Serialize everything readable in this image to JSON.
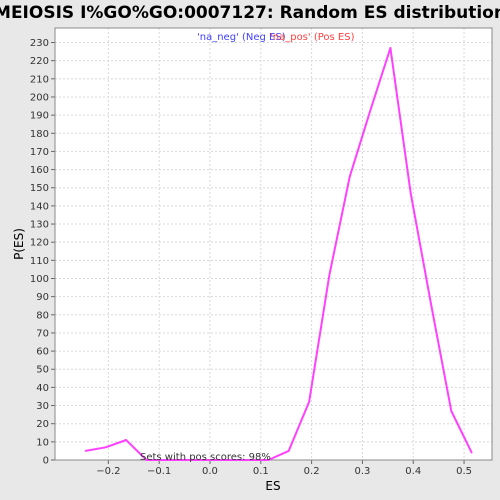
{
  "chart_data": {
    "type": "line",
    "title": "MEIOSIS I%GO%GO:0007127: Random ES distribution",
    "xlabel": "ES",
    "ylabel": "P(ES)",
    "xlim": [
      -0.305,
      0.555
    ],
    "ylim": [
      0,
      238
    ],
    "x_ticks": [
      -0.2,
      -0.1,
      0.0,
      0.1,
      0.2,
      0.3,
      0.4,
      0.5
    ],
    "x_tick_labels": [
      "−0.2",
      "−0.1",
      "0.0",
      "0.1",
      "0.2",
      "0.3",
      "0.4",
      "0.5"
    ],
    "y_ticks": [
      0,
      10,
      20,
      30,
      40,
      50,
      60,
      70,
      80,
      90,
      100,
      110,
      120,
      130,
      140,
      150,
      160,
      170,
      180,
      190,
      200,
      210,
      220,
      230
    ],
    "grid": true,
    "legend_position": "top-center",
    "series": [
      {
        "name": "'na_neg' (Neg ES)",
        "color": "#4040ff",
        "x": [],
        "y": []
      },
      {
        "name": "'na_pos' (Pos ES)",
        "color": "#ff40ff",
        "x": [
          -0.245,
          -0.205,
          -0.165,
          -0.125,
          -0.085,
          -0.045,
          -0.005,
          0.035,
          0.075,
          0.115,
          0.155,
          0.195,
          0.235,
          0.275,
          0.315,
          0.355,
          0.395,
          0.435,
          0.475,
          0.515
        ],
        "y": [
          5,
          7,
          11,
          0,
          0,
          0,
          0,
          0,
          0,
          0,
          5,
          32,
          102,
          156,
          192,
          227,
          147,
          86,
          27,
          4
        ]
      }
    ],
    "legend_colors": {
      "neg": "#4040ff",
      "pos": "#ff4040"
    },
    "annotation": "Sets with pos scores: 98%"
  }
}
